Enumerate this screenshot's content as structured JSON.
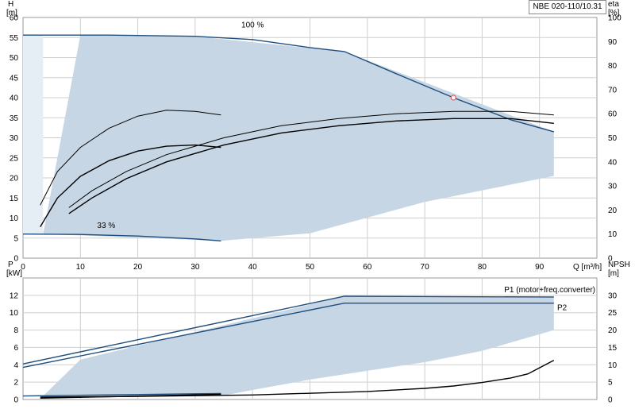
{
  "chart_data": [
    {
      "type": "line",
      "title": "NBE 020-110/10.31",
      "xlabel": "Q [m³/h]",
      "ylabel": "H\n[m]",
      "ylabel_right": "eta\n[%]",
      "xlim": [
        0,
        100
      ],
      "ylim": [
        0,
        60
      ],
      "ylim_right": [
        0,
        100
      ],
      "x_ticks": [
        "0",
        "10",
        "20",
        "30",
        "40",
        "50",
        "60",
        "70",
        "80",
        "90"
      ],
      "y_ticks": [
        "0",
        "5",
        "10",
        "15",
        "20",
        "25",
        "30",
        "35",
        "40",
        "45",
        "50",
        "55",
        "60"
      ],
      "y_ticks_right": [
        "0",
        "10",
        "20",
        "30",
        "40",
        "50",
        "60",
        "70",
        "80",
        "90",
        "100"
      ],
      "grid": true,
      "annotations": [
        {
          "text": "100 %"
        },
        {
          "text": "33 %"
        }
      ],
      "operating_point": {
        "x": 75,
        "y": 40
      },
      "series": [
        {
          "role": "operating-area",
          "color": "#c7d6e4",
          "x": [
            3.5,
            10,
            30,
            56,
            92.5,
            92.5,
            70,
            50,
            34.5
          ],
          "y": [
            6,
            55.6,
            55.3,
            51.5,
            31.5,
            20.5,
            14,
            6.2,
            4.3
          ]
        },
        {
          "role": "head-max",
          "color": "#1f4e7d",
          "x": [
            0,
            15,
            30,
            40,
            50,
            56,
            65,
            75,
            85,
            92.5
          ],
          "y": [
            55.6,
            55.6,
            55.3,
            54.5,
            52.5,
            51.5,
            46,
            40,
            34.5,
            31.5
          ]
        },
        {
          "role": "head-min",
          "color": "#1f4e7d",
          "x": [
            0,
            10,
            20,
            30,
            34.5
          ],
          "y": [
            6,
            5.9,
            5.5,
            4.8,
            4.3
          ]
        },
        {
          "role": "eta-1",
          "color": "#000000",
          "axis": "right",
          "x": [
            3,
            6,
            10,
            15,
            20,
            25,
            30,
            34.5
          ],
          "y": [
            22,
            36,
            46,
            54,
            59,
            61.5,
            61,
            59.5
          ]
        },
        {
          "role": "eta-2",
          "color": "#000000",
          "axis": "right",
          "x": [
            3,
            6,
            10,
            15,
            20,
            25,
            30,
            34.5
          ],
          "y": [
            13,
            25,
            34,
            40.5,
            44.5,
            46.5,
            47,
            46
          ]
        },
        {
          "role": "eta-3",
          "color": "#000000",
          "axis": "right",
          "x": [
            8,
            12,
            18,
            25,
            35,
            45,
            55,
            65,
            75,
            85,
            92.5
          ],
          "y": [
            21,
            28,
            36,
            43,
            50,
            55,
            58,
            60,
            61,
            61,
            59.5
          ]
        },
        {
          "role": "eta-4",
          "color": "#000000",
          "axis": "right",
          "x": [
            8,
            12,
            18,
            25,
            35,
            45,
            55,
            65,
            75,
            85,
            92.5
          ],
          "y": [
            18.5,
            25,
            33,
            40,
            47,
            52,
            55,
            57,
            58,
            58,
            56
          ]
        }
      ]
    },
    {
      "type": "line",
      "xlabel": "",
      "ylabel": "P\n[kW]",
      "ylabel_right": "NPSH\n[m]",
      "xlim": [
        0,
        100
      ],
      "ylim": [
        0,
        14
      ],
      "ylim_right": [
        0,
        35
      ],
      "y_ticks": [
        "0",
        "2",
        "4",
        "6",
        "8",
        "10",
        "12"
      ],
      "y_ticks_right": [
        "0",
        "5",
        "10",
        "15",
        "20",
        "25",
        "30"
      ],
      "grid": true,
      "series": [
        {
          "role": "power-area",
          "color": "#c7d6e4",
          "x": [
            3.5,
            10,
            56,
            92.5,
            92.5,
            80,
            70,
            60,
            50,
            40,
            34.5
          ],
          "y": [
            0.4,
            4.6,
            11.9,
            11.7,
            8.0,
            5.6,
            4.3,
            3.3,
            2.3,
            1.1,
            0.4
          ]
        },
        {
          "name": "P1 (motor+freq.converter)",
          "color": "#1f4e7d",
          "x": [
            0,
            56,
            92.5
          ],
          "y": [
            4.1,
            11.9,
            11.8
          ]
        },
        {
          "name": "P2",
          "color": "#1f4e7d",
          "x": [
            0,
            56,
            92.5
          ],
          "y": [
            3.7,
            11.1,
            11.1
          ]
        },
        {
          "role": "power-min",
          "color": "#1f4e7d",
          "x": [
            0,
            34.5
          ],
          "y": [
            0.4,
            0.7
          ]
        },
        {
          "role": "npsh",
          "color": "#000000",
          "axis": "right",
          "x": [
            3,
            20,
            40,
            60,
            70,
            75,
            80,
            85,
            88,
            92.5
          ],
          "y": [
            0.7,
            0.9,
            1.3,
            2.3,
            3.2,
            3.9,
            4.9,
            6.2,
            7.4,
            11.3
          ]
        },
        {
          "role": "npsh-low",
          "color": "#000000",
          "axis": "right",
          "x": [
            3,
            15,
            34.5
          ],
          "y": [
            0.4,
            0.8,
            1.5
          ]
        }
      ]
    }
  ]
}
